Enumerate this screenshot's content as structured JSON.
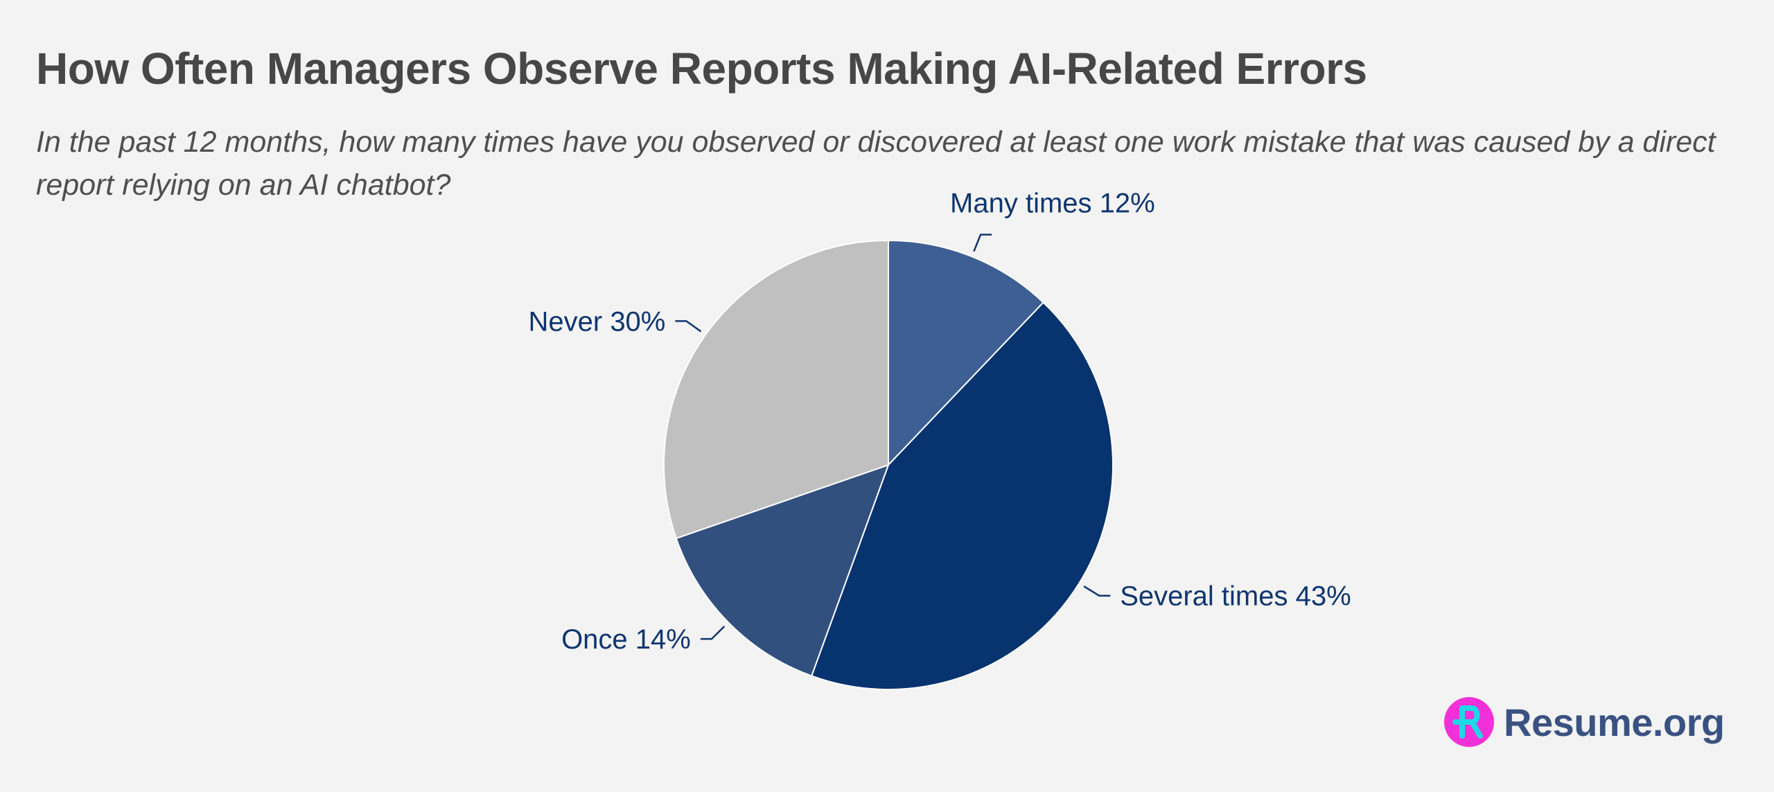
{
  "title": "How Often Managers Observe Reports Making AI-Related Errors",
  "subtitle": "In the past 12 months, how many times have you observed or discovered at least one work mistake that was caused by a direct report relying on an AI chatbot?",
  "chart_data": {
    "type": "pie",
    "slices": [
      {
        "label": "Many times",
        "value": 12,
        "display": "Many times 12%",
        "color": "#3d5f94"
      },
      {
        "label": "Several times",
        "value": 43,
        "display": "Several times 43%",
        "color": "#07336e"
      },
      {
        "label": "Once",
        "value": 14,
        "display": "Once 14%",
        "color": "#31507e"
      },
      {
        "label": "Never",
        "value": 30,
        "display": "Never 30%",
        "color": "#c0c0c0"
      }
    ],
    "label_color": "#0e3570",
    "slice_border_color": "#ffffff"
  },
  "brand": {
    "name": "Resume.org",
    "logo_icon": "resume-org-logo-icon",
    "logo_color": "#f230d8",
    "logo_letter_color": "#1dd8e6",
    "text_color": "#3a5282"
  }
}
